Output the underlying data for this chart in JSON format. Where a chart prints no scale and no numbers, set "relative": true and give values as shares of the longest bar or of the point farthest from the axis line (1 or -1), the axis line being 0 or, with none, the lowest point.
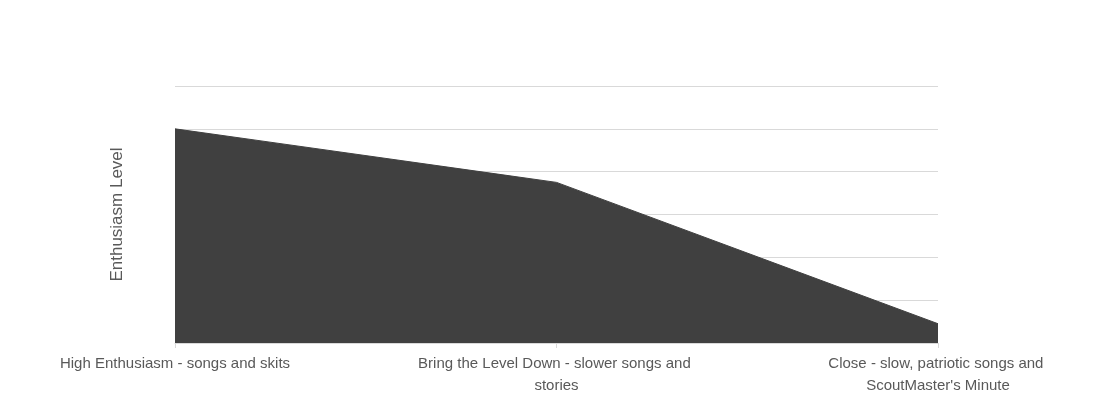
{
  "chart_data": {
    "type": "area",
    "ylabel": "Enthusiasm Level",
    "relative": true,
    "grid": "y",
    "categories": [
      "High Enthusiasm - songs and skits",
      "Bring the Level Down - slower songs and stories",
      "Close - slow, patriotic songs and ScoutMaster's Minute"
    ],
    "series": [
      {
        "color": "#404040",
        "values": [
          1,
          0.75,
          0.09
        ]
      }
    ]
  }
}
